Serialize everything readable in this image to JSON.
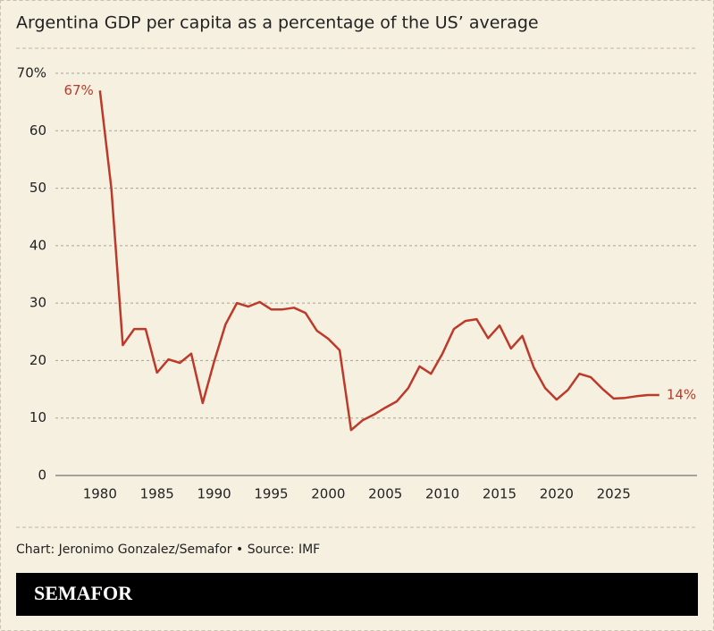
{
  "chart_data": {
    "type": "line",
    "title": "Argentina GDP per capita as a percentage of the US’ average",
    "source": "Chart: Jeronimo Gonzalez/Semafor • Source: IMF",
    "brand": "SEMAFOR",
    "color": "#bc3a2a",
    "x": [
      1980,
      1981,
      1982,
      1983,
      1984,
      1985,
      1986,
      1987,
      1988,
      1989,
      1990,
      1991,
      1992,
      1993,
      1994,
      1995,
      1996,
      1997,
      1998,
      1999,
      2000,
      2001,
      2002,
      2003,
      2004,
      2005,
      2006,
      2007,
      2008,
      2009,
      2010,
      2011,
      2012,
      2013,
      2014,
      2015,
      2016,
      2017,
      2018,
      2019,
      2020,
      2021,
      2022,
      2023,
      2024,
      2025,
      2026,
      2027,
      2028,
      2029
    ],
    "values": [
      67,
      50,
      22.7,
      25.5,
      25.5,
      17.9,
      20.2,
      19.6,
      21.2,
      12.6,
      19.8,
      26.3,
      30.0,
      29.4,
      30.2,
      28.9,
      28.9,
      29.2,
      28.3,
      25.2,
      23.8,
      21.8,
      7.9,
      9.6,
      10.6,
      11.8,
      12.9,
      15.2,
      19.0,
      17.7,
      21.2,
      25.5,
      26.9,
      27.2,
      23.9,
      26.1,
      22.1,
      24.3,
      18.8,
      15.2,
      13.2,
      14.9,
      17.7,
      17.1,
      15.1,
      13.4,
      13.5,
      13.8,
      14.0,
      14.0
    ],
    "value_labels": [
      "67%",
      null,
      null,
      null,
      null,
      null,
      null,
      null,
      null,
      null,
      null,
      null,
      null,
      null,
      null,
      null,
      null,
      null,
      null,
      null,
      null,
      null,
      null,
      null,
      null,
      null,
      null,
      null,
      null,
      null,
      null,
      null,
      null,
      null,
      null,
      null,
      null,
      null,
      null,
      null,
      null,
      null,
      null,
      null,
      null,
      null,
      null,
      null,
      null,
      "14%"
    ],
    "xlim": [
      1976.1,
      2032.3
    ],
    "xticks": [
      1980,
      1985,
      1990,
      1995,
      2000,
      2005,
      2010,
      2015,
      2020,
      2025
    ],
    "ylim": [
      0,
      70
    ],
    "yticks": [
      0,
      10,
      20,
      30,
      40,
      50,
      60,
      {
        "value": 70,
        "label": "70%"
      }
    ],
    "grid": true
  }
}
